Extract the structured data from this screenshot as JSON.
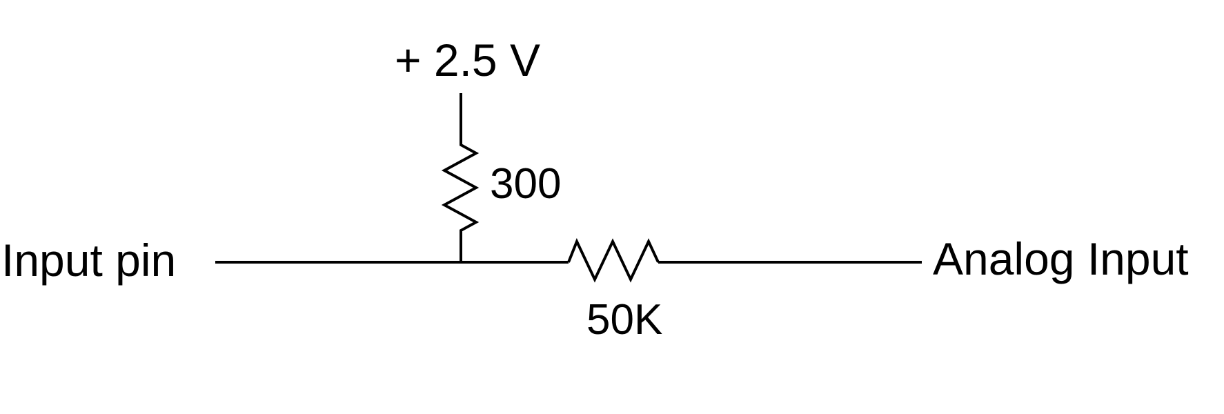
{
  "diagram": {
    "supply_label": "+ 2.5 V",
    "input_label": "Input pin",
    "output_label": "Analog Input",
    "resistor_pullup_value": "300",
    "resistor_series_value": "50K"
  },
  "colors": {
    "ink": "#000000",
    "background": "#ffffff"
  }
}
